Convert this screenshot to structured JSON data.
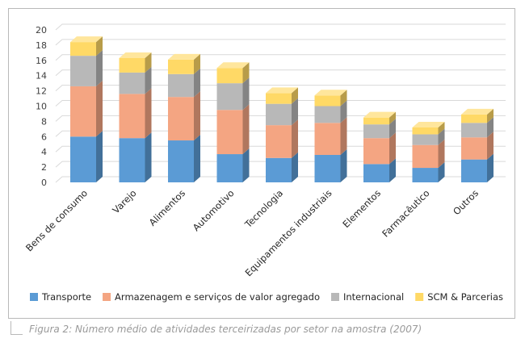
{
  "caption": "Figura 2: Número médio de atividades terceirizadas por setor na amostra (2007)",
  "chart_data": {
    "type": "bar",
    "stacked": true,
    "style": "3d-column",
    "categories": [
      "Bens de consumo",
      "Varejo",
      "Alimentos",
      "Automotivo",
      "Tecnologia",
      "Equipamentos industriais",
      "Elementos",
      "Farmacêutico",
      "Outros"
    ],
    "series": [
      {
        "name": "Transporte",
        "color": "#5b9bd5",
        "values": [
          6.0,
          5.8,
          5.5,
          3.7,
          3.2,
          3.6,
          2.4,
          1.9,
          3.0
        ]
      },
      {
        "name": "Armazenagem e serviços de valor agregado",
        "color": "#f4a582",
        "values": [
          6.6,
          5.8,
          5.7,
          5.8,
          4.3,
          4.2,
          3.4,
          3.0,
          2.9
        ]
      },
      {
        "name": "Internacional",
        "color": "#b8b8b8",
        "values": [
          4.0,
          2.8,
          3.0,
          3.5,
          2.8,
          2.2,
          1.8,
          1.4,
          1.9
        ]
      },
      {
        "name": "SCM & Parcerias",
        "color": "#ffd966",
        "values": [
          1.8,
          1.9,
          1.9,
          2.0,
          1.4,
          1.4,
          0.9,
          0.9,
          1.1
        ]
      }
    ],
    "yticks": [
      0,
      2,
      4,
      6,
      8,
      10,
      12,
      14,
      16,
      18,
      20
    ],
    "ylim": [
      0,
      20
    ],
    "grid": true,
    "legend": "bottom"
  }
}
